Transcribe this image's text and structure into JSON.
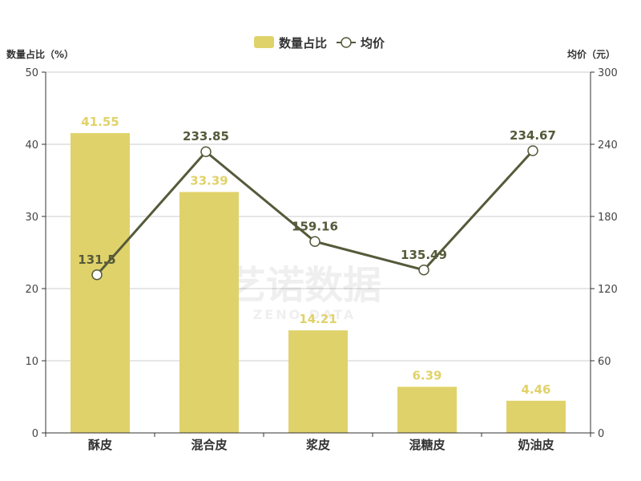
{
  "chart_data": {
    "type": "bar",
    "categories": [
      "酥皮",
      "混合皮",
      "浆皮",
      "混糖皮",
      "奶油皮"
    ],
    "series": [
      {
        "name": "数量占比",
        "type": "bar",
        "axis": "left",
        "values": [
          41.55,
          33.39,
          14.21,
          6.39,
          4.46
        ]
      },
      {
        "name": "均价",
        "type": "line",
        "axis": "right",
        "values": [
          131.5,
          233.85,
          159.16,
          135.49,
          234.67
        ]
      }
    ],
    "ylabel_left": "数量占比（%）",
    "ylabel_right": "均价（元）",
    "ylim_left": [
      0,
      50
    ],
    "ylim_right": [
      0,
      300
    ],
    "yticks_left": [
      "0",
      "10",
      "20",
      "30",
      "40",
      "50"
    ],
    "yticks_right": [
      "0",
      "60",
      "120",
      "180",
      "240",
      "300"
    ],
    "grid": true,
    "legend": "top-center",
    "colors": {
      "bar": "#e0d26a",
      "line": "#555a3a",
      "point_fill": "#ffffff"
    }
  },
  "watermark": {
    "main": "艺诺数据",
    "sub": "ZENO DATA"
  }
}
